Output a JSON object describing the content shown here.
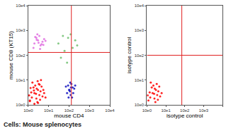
{
  "caption": "Cells: Mouse splenocytes",
  "chart_data": [
    {
      "type": "scatter",
      "log": true,
      "grid": false,
      "x_label": "mouse CD4",
      "y_label": "mouse CD8 (KT15)",
      "xlim": [
        1,
        10000
      ],
      "ylim": [
        1,
        10000
      ],
      "xticks": [
        {
          "value": 1,
          "label": "10e0"
        },
        {
          "value": 10,
          "label": "10e1"
        },
        {
          "value": 100,
          "label": "10e2"
        },
        {
          "value": 1000,
          "label": "10e3"
        },
        {
          "value": 10000,
          "label": "10e4"
        }
      ],
      "yticks": [
        {
          "value": 1,
          "label": "10e0"
        },
        {
          "value": 10,
          "label": "10e1"
        },
        {
          "value": 100,
          "label": "10e2"
        },
        {
          "value": 1000,
          "label": "10e3"
        },
        {
          "value": 10000,
          "label": "10e4"
        }
      ],
      "gate": {
        "x": 130,
        "y": 130,
        "color": "#e02020"
      },
      "series": [
        {
          "color": "#ff0000",
          "x": [
            1.2,
            1.5,
            2,
            2.5,
            3,
            3.5,
            4,
            5,
            1.8,
            2.2,
            2.8,
            3.3,
            1.4,
            1.1,
            2.6,
            3.8,
            4.5,
            6,
            1.6,
            2.4,
            3,
            2,
            1.3,
            5.5,
            7,
            2.9,
            3.6,
            1.9,
            1.2,
            4.2
          ],
          "y": [
            1.5,
            2,
            3,
            1.8,
            4,
            2.5,
            3.5,
            2.2,
            5,
            6,
            1.3,
            7,
            3.2,
            2.4,
            4.5,
            1.6,
            5.5,
            3,
            8,
            2.8,
            1.2,
            1.1,
            4.8,
            4,
            2,
            9,
            6.5,
            3.8,
            1.4,
            10
          ]
        },
        {
          "color": "#e070e0",
          "x": [
            2,
            3,
            4,
            2.5,
            5,
            3.5,
            1.8,
            6,
            2.8,
            4.5,
            3.2,
            2.2,
            7,
            3.8,
            2.6,
            5.5
          ],
          "y": [
            300,
            400,
            250,
            500,
            350,
            600,
            200,
            450,
            700,
            280,
            320,
            550,
            380,
            180,
            420,
            260
          ]
        },
        {
          "color": "#1010c0",
          "x": [
            80,
            100,
            120,
            150,
            90,
            110,
            140,
            180,
            70,
            130,
            160,
            200,
            95,
            115,
            105,
            125
          ],
          "y": [
            3,
            4,
            2.5,
            5,
            6,
            3.5,
            2,
            4.5,
            5.5,
            7,
            3,
            6,
            2,
            8,
            4,
            5
          ]
        },
        {
          "color": "#70c070",
          "x": [
            30,
            60,
            90,
            150,
            40,
            120,
            200,
            80,
            250,
            50
          ],
          "y": [
            300,
            150,
            500,
            200,
            80,
            700,
            400,
            50,
            250,
            600
          ]
        }
      ]
    },
    {
      "type": "scatter",
      "log": true,
      "grid": false,
      "x_label": "isotype control",
      "y_label": "isotype control",
      "xlim": [
        1,
        10000
      ],
      "ylim": [
        1,
        10000
      ],
      "xticks": [
        {
          "value": 1,
          "label": "10e0"
        },
        {
          "value": 10,
          "label": "10e1"
        },
        {
          "value": 100,
          "label": "10e2"
        },
        {
          "value": 1000,
          "label": "10e3"
        },
        {
          "value": 10000,
          "label": "10e4"
        }
      ],
      "yticks": [
        {
          "value": 1,
          "label": "10e0"
        },
        {
          "value": 10,
          "label": "10e1"
        },
        {
          "value": 100,
          "label": "10e2"
        },
        {
          "value": 1000,
          "label": "10e3"
        },
        {
          "value": 10000,
          "label": "10e4"
        }
      ],
      "gate": {
        "x": 70,
        "y": 100,
        "color": "#e02020"
      },
      "series": [
        {
          "color": "#ff0000",
          "x": [
            1.2,
            1.5,
            2,
            2.5,
            3,
            3.5,
            4,
            5,
            1.8,
            2.2,
            2.8,
            3.3,
            1.4,
            1.1,
            2.6,
            3.8,
            4.5,
            6,
            1.6,
            2.4
          ],
          "y": [
            1.5,
            2,
            3,
            1.8,
            4,
            2.5,
            3.5,
            2.2,
            5,
            6,
            1.3,
            7,
            3.2,
            2.4,
            4.5,
            1.6,
            5.5,
            3,
            8,
            2.8
          ]
        }
      ]
    }
  ]
}
